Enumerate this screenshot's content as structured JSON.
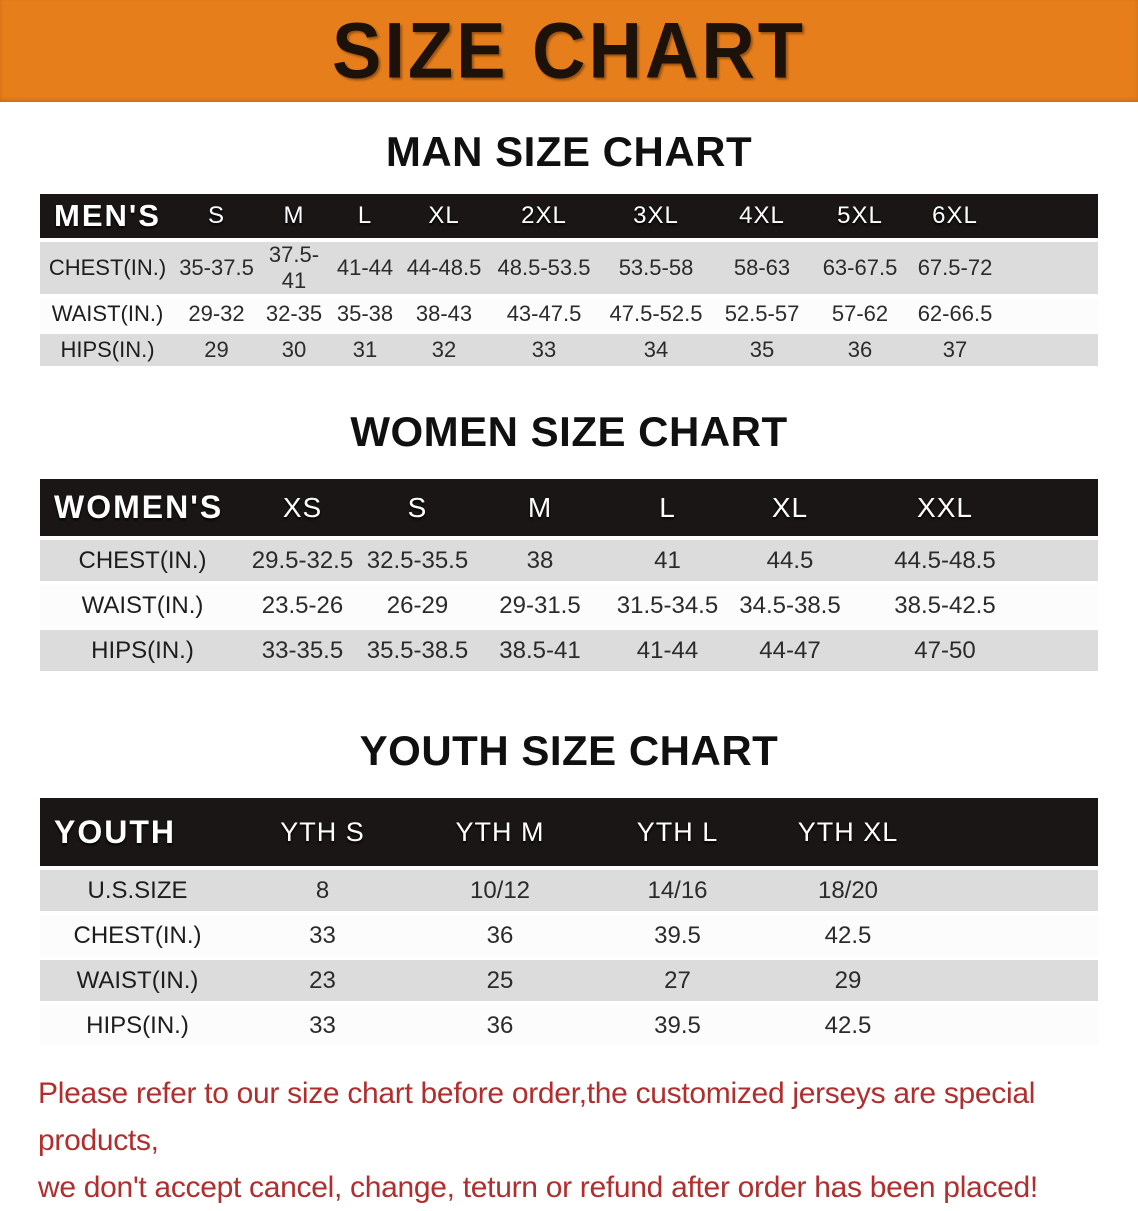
{
  "banner": {
    "title": "SIZE CHART",
    "background_color": "#E67F1B",
    "text_color": "#1C120A"
  },
  "chart_data": [
    {
      "type": "table",
      "title": "MAN SIZE CHART",
      "columns": [
        "MEN'S",
        "S",
        "M",
        "L",
        "XL",
        "2XL",
        "3XL",
        "4XL",
        "5XL",
        "6XL"
      ],
      "rows": [
        [
          "CHEST(IN.)",
          "35-37.5",
          "37.5-41",
          "41-44",
          "44-48.5",
          "48.5-53.5",
          "53.5-58",
          "58-63",
          "63-67.5",
          "67.5-72"
        ],
        [
          "WAIST(IN.)",
          "29-32",
          "32-35",
          "35-38",
          "38-43",
          "43-47.5",
          "47.5-52.5",
          "52.5-57",
          "57-62",
          "62-66.5"
        ],
        [
          "HIPS(IN.)",
          "29",
          "30",
          "31",
          "32",
          "33",
          "34",
          "35",
          "36",
          "37"
        ]
      ]
    },
    {
      "type": "table",
      "title": "WOMEN SIZE CHART",
      "columns": [
        "WOMEN'S",
        "XS",
        "S",
        "M",
        "L",
        "XL",
        "XXL"
      ],
      "rows": [
        [
          "CHEST(IN.)",
          "29.5-32.5",
          "32.5-35.5",
          "38",
          "41",
          "44.5",
          "44.5-48.5"
        ],
        [
          "WAIST(IN.)",
          "23.5-26",
          "26-29",
          "29-31.5",
          "31.5-34.5",
          "34.5-38.5",
          "38.5-42.5"
        ],
        [
          "HIPS(IN.)",
          "33-35.5",
          "35.5-38.5",
          "38.5-41",
          "41-44",
          "44-47",
          "47-50"
        ]
      ]
    },
    {
      "type": "table",
      "title": "YOUTH SIZE CHART",
      "columns": [
        "YOUTH",
        "YTH S",
        "YTH M",
        "YTH L",
        "YTH XL"
      ],
      "rows": [
        [
          "U.S.SIZE",
          "8",
          "10/12",
          "14/16",
          "18/20"
        ],
        [
          "CHEST(IN.)",
          "33",
          "36",
          "39.5",
          "42.5"
        ],
        [
          "WAIST(IN.)",
          "23",
          "25",
          "27",
          "29"
        ],
        [
          "HIPS(IN.)",
          "33",
          "36",
          "39.5",
          "42.5"
        ]
      ]
    }
  ],
  "table_style": {
    "header_row_background": "#1A1615",
    "header_row_text": "#FFFFFF",
    "shaded_row_background": "#DCDCDC",
    "plain_row_background": "#FCFCFC"
  },
  "disclaimer": {
    "line1": "Please refer to our size chart before order,the customized jerseys are special products,",
    "line2": "we don't accept cancel, change, teturn or refund after order has been placed!",
    "text_color": "#B02E2E"
  }
}
